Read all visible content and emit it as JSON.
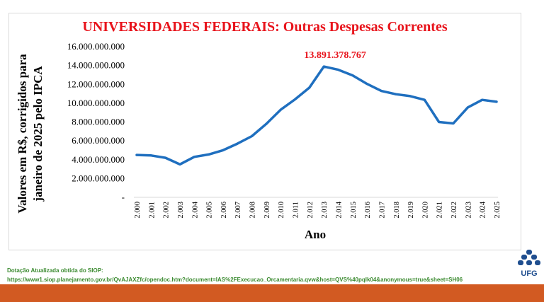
{
  "chart_data": {
    "type": "line",
    "title": "UNIVERSIDADES FEDERAIS: Outras Despesas Correntes",
    "xlabel": "Ano",
    "ylabel_line1": "Valores em R$, corrigidos para",
    "ylabel_line2": "janeiro de 2025 pelo IPCA",
    "ylim": [
      0,
      16000000000
    ],
    "yticks": [
      {
        "value": 16000000000,
        "label": "16.000.000.000"
      },
      {
        "value": 14000000000,
        "label": "14.000.000.000"
      },
      {
        "value": 12000000000,
        "label": "12.000.000.000"
      },
      {
        "value": 10000000000,
        "label": "10.000.000.000"
      },
      {
        "value": 8000000000,
        "label": "8.000.000.000"
      },
      {
        "value": 6000000000,
        "label": "6.000.000.000"
      },
      {
        "value": 4000000000,
        "label": "4.000.000.000"
      },
      {
        "value": 2000000000,
        "label": "2.000.000.000"
      },
      {
        "value": 0,
        "label": "-"
      }
    ],
    "categories": [
      "2.000",
      "2.001",
      "2.002",
      "2.003",
      "2.004",
      "2.005",
      "2.006",
      "2.007",
      "2.008",
      "2.009",
      "2.010",
      "2.011",
      "2.012",
      "2.013",
      "2.014",
      "2.015",
      "2.016",
      "2.017",
      "2.018",
      "2.019",
      "2.020",
      "2.021",
      "2.022",
      "2.023",
      "2.024",
      "2.025"
    ],
    "series": [
      {
        "color": "#1f6fbf",
        "values": [
          4500000000,
          4450000000,
          4200000000,
          3500000000,
          4300000000,
          4550000000,
          5000000000,
          5700000000,
          6500000000,
          7800000000,
          9300000000,
          10400000000,
          11650000000,
          13891378767,
          13550000000,
          12950000000,
          12050000000,
          11300000000,
          10950000000,
          10750000000,
          10350000000,
          8000000000,
          7850000000,
          9550000000,
          10350000000,
          10150000000
        ]
      }
    ],
    "annotation": {
      "index": 13,
      "label": "13.891.378.767",
      "color": "#e8131b"
    },
    "grid": false
  },
  "source": {
    "line1": "Dotação Atualizada obtida do SIOP:",
    "line2": "https://www1.siop.planejamento.gov.br/QvAJAXZfc/opendoc.htm?document=IAS%2FExecucao_Orcamentaria.qvw&host=QVS%40pqlk04&anonymous=true&sheet=SH06"
  },
  "logo": {
    "text": "UFG",
    "icon": "ufg-logo-icon",
    "color": "#1f4e8f"
  },
  "footer": {
    "color": "#d25a22"
  }
}
